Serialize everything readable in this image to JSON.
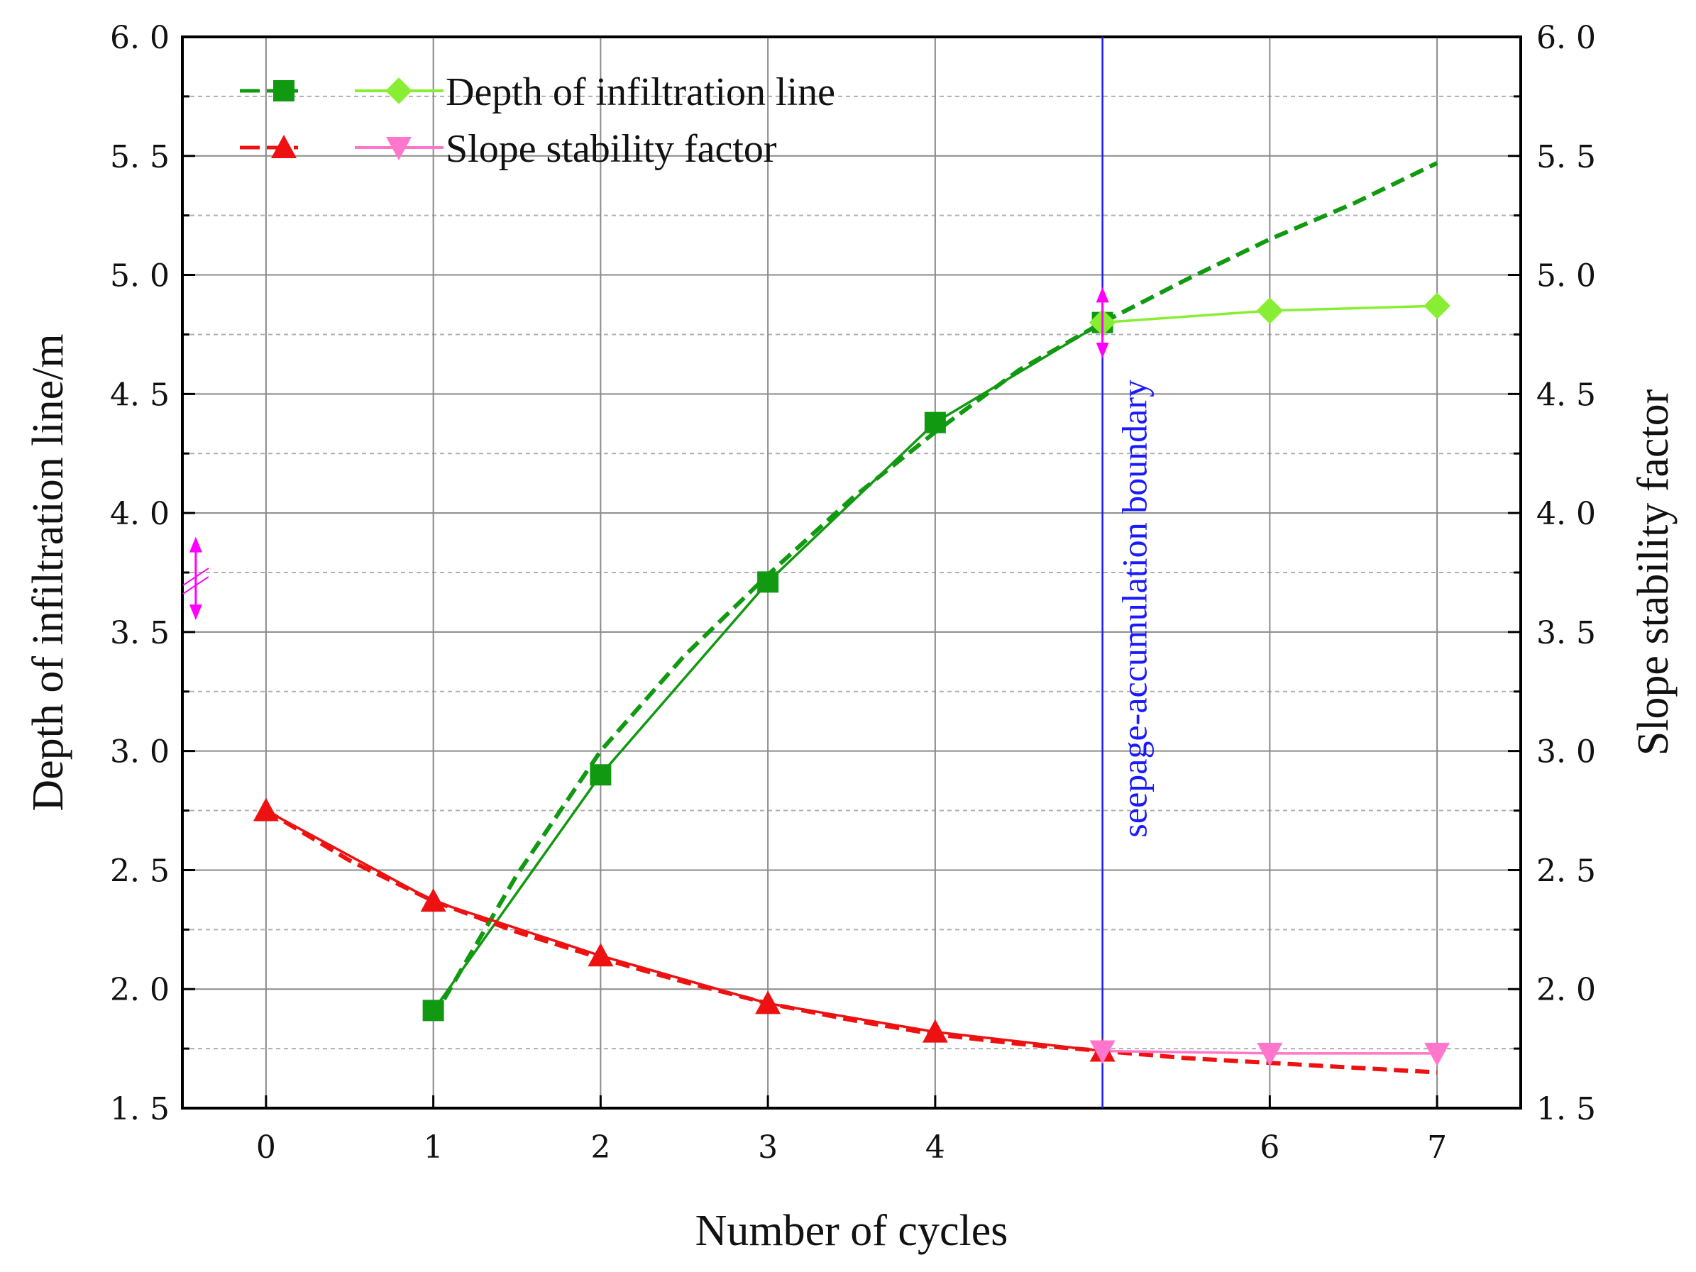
{
  "chart_data": {
    "type": "line",
    "xlabel": "Number of cycles",
    "ylabel_left": "Depth of infiltration line/m",
    "ylabel_right": "Slope stability factor",
    "xlim": [
      -0.5,
      7.5
    ],
    "x_ticks": [
      0,
      1,
      2,
      3,
      4,
      6,
      7
    ],
    "ylim_left": [
      1.5,
      6.0
    ],
    "ylim_right": [
      1.5,
      6.0
    ],
    "y_ticks": [
      "1. 5",
      "2. 0",
      "2. 5",
      "3. 0",
      "3. 5",
      "4. 0",
      "4. 5",
      "5. 0",
      "5. 5",
      "6. 0"
    ],
    "y_tick_values": [
      1.5,
      2.0,
      2.5,
      3.0,
      3.5,
      4.0,
      4.5,
      5.0,
      5.5,
      6.0
    ],
    "grid": true,
    "legend": {
      "position": "top-left",
      "entries": [
        "Depth of infiltration line",
        "Slope stability factor"
      ]
    },
    "series": [
      {
        "name": "Depth of infiltration line",
        "role": "measured",
        "color": "#119911",
        "marker": "square",
        "x": [
          1,
          2,
          3,
          4,
          5
        ],
        "y": [
          1.91,
          2.9,
          3.71,
          4.38,
          4.8
        ]
      },
      {
        "name": "Depth of infiltration line",
        "role": "fitted",
        "color": "#119911",
        "style": "dashed",
        "x": [
          1,
          1.5,
          2,
          2.5,
          3,
          3.5,
          4,
          4.5,
          5,
          5.5,
          6,
          6.5,
          7
        ],
        "y": [
          1.88,
          2.48,
          3.0,
          3.4,
          3.74,
          4.06,
          4.34,
          4.6,
          4.8,
          4.98,
          5.15,
          5.3,
          5.47
        ]
      },
      {
        "name": "Depth of infiltration line",
        "role": "measured-after-boundary",
        "color": "#88ee33",
        "marker": "diamond",
        "x": [
          5,
          6,
          7
        ],
        "y": [
          4.8,
          4.85,
          4.87
        ]
      },
      {
        "name": "Slope stability factor",
        "role": "measured",
        "color": "#ee1111",
        "marker": "triangle-up",
        "x": [
          0,
          1,
          2,
          3,
          4,
          5
        ],
        "y": [
          2.75,
          2.37,
          2.14,
          1.94,
          1.82,
          1.74
        ]
      },
      {
        "name": "Slope stability factor",
        "role": "fitted",
        "color": "#ee1111",
        "style": "dashed",
        "x": [
          0,
          0.5,
          1,
          1.5,
          2,
          2.5,
          3,
          3.5,
          4,
          4.5,
          5,
          5.5,
          6,
          6.5,
          7
        ],
        "y": [
          2.75,
          2.54,
          2.37,
          2.24,
          2.13,
          2.03,
          1.94,
          1.87,
          1.81,
          1.77,
          1.74,
          1.71,
          1.69,
          1.67,
          1.65
        ]
      },
      {
        "name": "Slope stability factor",
        "role": "measured-after-boundary",
        "color": "#ff77cc",
        "marker": "triangle-down",
        "x": [
          5,
          6,
          7
        ],
        "y": [
          1.74,
          1.73,
          1.73
        ]
      }
    ],
    "annotations": [
      {
        "type": "vline",
        "x": 5,
        "color": "#1a1aff",
        "text": "seepage-accumulation boundary"
      },
      {
        "type": "double-arrow",
        "x": 5,
        "y_top": 4.95,
        "y_bottom": 4.65,
        "color": "#ff00ff"
      },
      {
        "type": "double-arrow",
        "x": -0.42,
        "y_top": 3.9,
        "y_bottom": 3.55,
        "color": "#ff00ff"
      }
    ]
  }
}
